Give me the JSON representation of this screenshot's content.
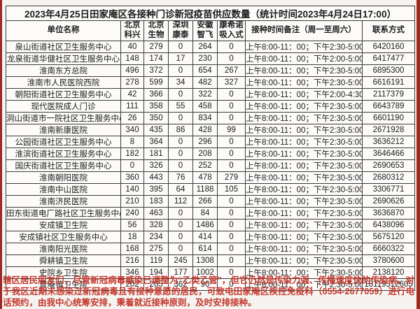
{
  "page": {
    "title": "2023年4月25日田家庵区各接种门诊新冠疫苗供应数量（统计时间2023年4月24日17:00）",
    "notice": "辖区居民朋友们，尽管新冠病毒感染已调整为“乙类乙管”，但它仍然是传染力强、传播速度快的传染病。对于我区近期未感染过新冠病毒且有接种意愿的居民，可致电田家庵区疾控免疫科（0554-2677059）进行电话预约，由我中心统筹安排，秉着就近接种原则，及时安排接种。",
    "colors": {
      "edge_strip": "#9c2a23",
      "notice_text": "#c4372d",
      "table_border": "#3c3c3c",
      "background": "#f5f4f1"
    }
  },
  "table": {
    "columns": [
      "单位名称",
      "北京科兴",
      "北京生物",
      "深圳康泰",
      "安徽智飞",
      "康希诺吸入式",
      "接种时间备注（周一至周六）",
      "联系方式"
    ],
    "rows": [
      {
        "name": "泉山街道社区卫生服务中心",
        "kexing": "40",
        "shengwu": "279",
        "kangtai": "0",
        "zhifei": "264",
        "kangxinuo": "0",
        "time": "上午8:00-11：00；下午2:30-5:00",
        "contact": "6420160"
      },
      {
        "name": "龙泉街道华健社区卫生服务中心",
        "kexing": "148",
        "shengwu": "174",
        "kangtai": "17",
        "zhifei": "230",
        "kangxinuo": "0",
        "time": "上午8:00-11：00；下午2:00-5:00",
        "contact": "6417477"
      },
      {
        "name": "淮南东方总院",
        "kexing": "496",
        "shengwu": "372",
        "kangtai": "0",
        "zhifei": "654",
        "kangxinuo": "267",
        "time": "上午8:00-11：00；下午2:30-5:00",
        "contact": "6895300"
      },
      {
        "name": "淮南市人民医院西院",
        "kexing": "278",
        "shengwu": "599",
        "kangtai": "34",
        "zhifei": "482",
        "kangxinuo": "327",
        "time": "上午8:00-11：00；下午2:30-5:00",
        "contact": "6616191"
      },
      {
        "name": "朝阳街道社区卫生服务中心",
        "kexing": "42",
        "shengwu": "366",
        "kangtai": "0",
        "zhifei": "322",
        "kangxinuo": "0",
        "time": "上午8:00-11：00；下午2:00-4:30",
        "contact": "2117379"
      },
      {
        "name": "现代医院成人门诊",
        "kexing": "111",
        "shengwu": "358",
        "kangtai": "55",
        "zhifei": "458",
        "kangxinuo": "0",
        "time": "上午8:00-11：00；下午2:30-5:00",
        "contact": "6643789"
      },
      {
        "name": "洞山街道市一院社区卫生服务中心",
        "kexing": "26",
        "shengwu": "350",
        "kangtai": "0",
        "zhifei": "834",
        "kangxinuo": "0",
        "time": "上午8:00-11：00；下午2:30-5:00",
        "contact": "6601190"
      },
      {
        "name": "淮南新康医院",
        "kexing": "340",
        "shengwu": "435",
        "kangtai": "86",
        "zhifei": "428",
        "kangxinuo": "99",
        "time": "上午8:00-11：00；下午2:30-5:00",
        "contact": "2671928"
      },
      {
        "name": "公园街道社区卫生服务中心",
        "kexing": "8",
        "shengwu": "364",
        "kangtai": "0",
        "zhifei": "296",
        "kangxinuo": "0",
        "time": "上午8:00-11：00；下午2:30-5:00",
        "contact": "3636212"
      },
      {
        "name": "淮滨街道社区卫生服务中心",
        "kexing": "182",
        "shengwu": "181",
        "kangtai": "0",
        "zhifei": "208",
        "kangxinuo": "0",
        "time": "上午8:00-11：00；下午2:30-5:00",
        "contact": "3646466"
      },
      {
        "name": "国庆街道社区卫生服务中心",
        "kexing": "0",
        "shengwu": "326",
        "kangtai": "0",
        "zhifei": "252",
        "kangxinuo": "0",
        "time": "上午8:00-11：00；下午2:30-5:00",
        "contact": "2690653"
      },
      {
        "name": "淮南朝阳医院",
        "kexing": "360",
        "shengwu": "443",
        "kangtai": "76",
        "zhifei": "478",
        "kangxinuo": "279",
        "time": "上午8:00-11：00；下午2:30-5:00",
        "contact": "2680312"
      },
      {
        "name": "淮南中山医院",
        "kexing": "140",
        "shengwu": "395",
        "kangtai": "64",
        "zhifei": "1188",
        "kangxinuo": "105",
        "time": "上午8:00-11：00；下午2:30-5:00",
        "contact": "3306771"
      },
      {
        "name": "淮南济民医院",
        "kexing": "210",
        "shengwu": "183",
        "kangtai": "112",
        "zhifei": "266",
        "kangxinuo": "0",
        "time": "上午8:00-11：00；下午2:30-5:00",
        "contact": "2690626"
      },
      {
        "name": "田东街道电厂路社区卫生服务中心",
        "kexing": "240",
        "shengwu": "463",
        "kangtai": "0",
        "zhifei": "84",
        "kangxinuo": "0",
        "time": "上午8:00-11：00；下午2:30-5:00",
        "contact": "3636870"
      },
      {
        "name": "安成镇卫生院",
        "kexing": "56",
        "shengwu": "328",
        "kangtai": "0",
        "zhifei": "1486",
        "kangxinuo": "0",
        "time": "上午8:00-11：00；下午2:30-5:00",
        "contact": "6438096"
      },
      {
        "name": "安成镇社区卫生服务中心",
        "kexing": "18",
        "shengwu": "234",
        "kangtai": "0",
        "zhifei": "414",
        "kangxinuo": "0",
        "time": "上午8:00-11：00；下午2:30-5:00",
        "contact": "5675120"
      },
      {
        "name": "淮南阳光医院",
        "kexing": "168",
        "shengwu": "275",
        "kangtai": "0",
        "zhifei": "614",
        "kangxinuo": "0",
        "time": "上午8:00-11：00；下午2:30-5:00",
        "contact": "6660322"
      },
      {
        "name": "舜耕镇卫生院",
        "kexing": "216",
        "shengwu": "119",
        "kangtai": "245",
        "zhifei": "1308",
        "kangxinuo": "0",
        "time": "上午8:00-11：00；下午2:30-5:00",
        "contact": "3780600"
      },
      {
        "name": "史院乡卫生院",
        "kexing": "346",
        "shengwu": "194",
        "kangtai": "177",
        "zhifei": "1002",
        "kangxinuo": "0",
        "time": "上午8:00-11：00；下午2:30-5:00",
        "contact": "2138120"
      },
      {
        "name": "曹庵镇卫生院",
        "kexing": "202",
        "shengwu": "265",
        "kangtai": "362",
        "zhifei": "90",
        "kangxinuo": "0",
        "time": "上午8:00-11：00；下午2:30-5:00",
        "contact": "18119512605"
      }
    ]
  }
}
